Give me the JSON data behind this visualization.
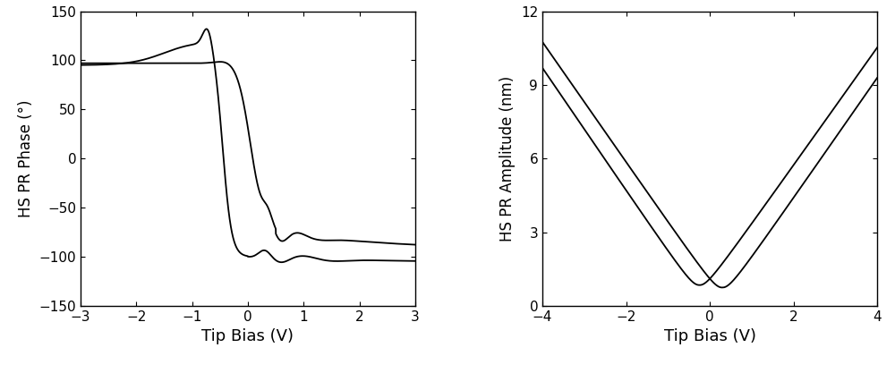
{
  "left_xlabel": "Tip Bias (V)",
  "left_ylabel": "HS PR Phase (°)",
  "left_xlim": [
    -3,
    3
  ],
  "left_ylim": [
    -150,
    150
  ],
  "left_xticks": [
    -3,
    -2,
    -1,
    0,
    1,
    2,
    3
  ],
  "left_yticks": [
    -150,
    -100,
    -50,
    0,
    50,
    100,
    150
  ],
  "right_xlabel": "Tip Bias (V)",
  "right_ylabel": "HS PR Amplitude (nm)",
  "right_xlim": [
    -4,
    4
  ],
  "right_ylim": [
    0,
    12
  ],
  "right_xticks": [
    -4,
    -2,
    0,
    2,
    4
  ],
  "right_yticks": [
    0,
    3,
    6,
    9,
    12
  ],
  "line_color": "#000000",
  "linewidth": 1.3,
  "bg_color": "#ffffff"
}
